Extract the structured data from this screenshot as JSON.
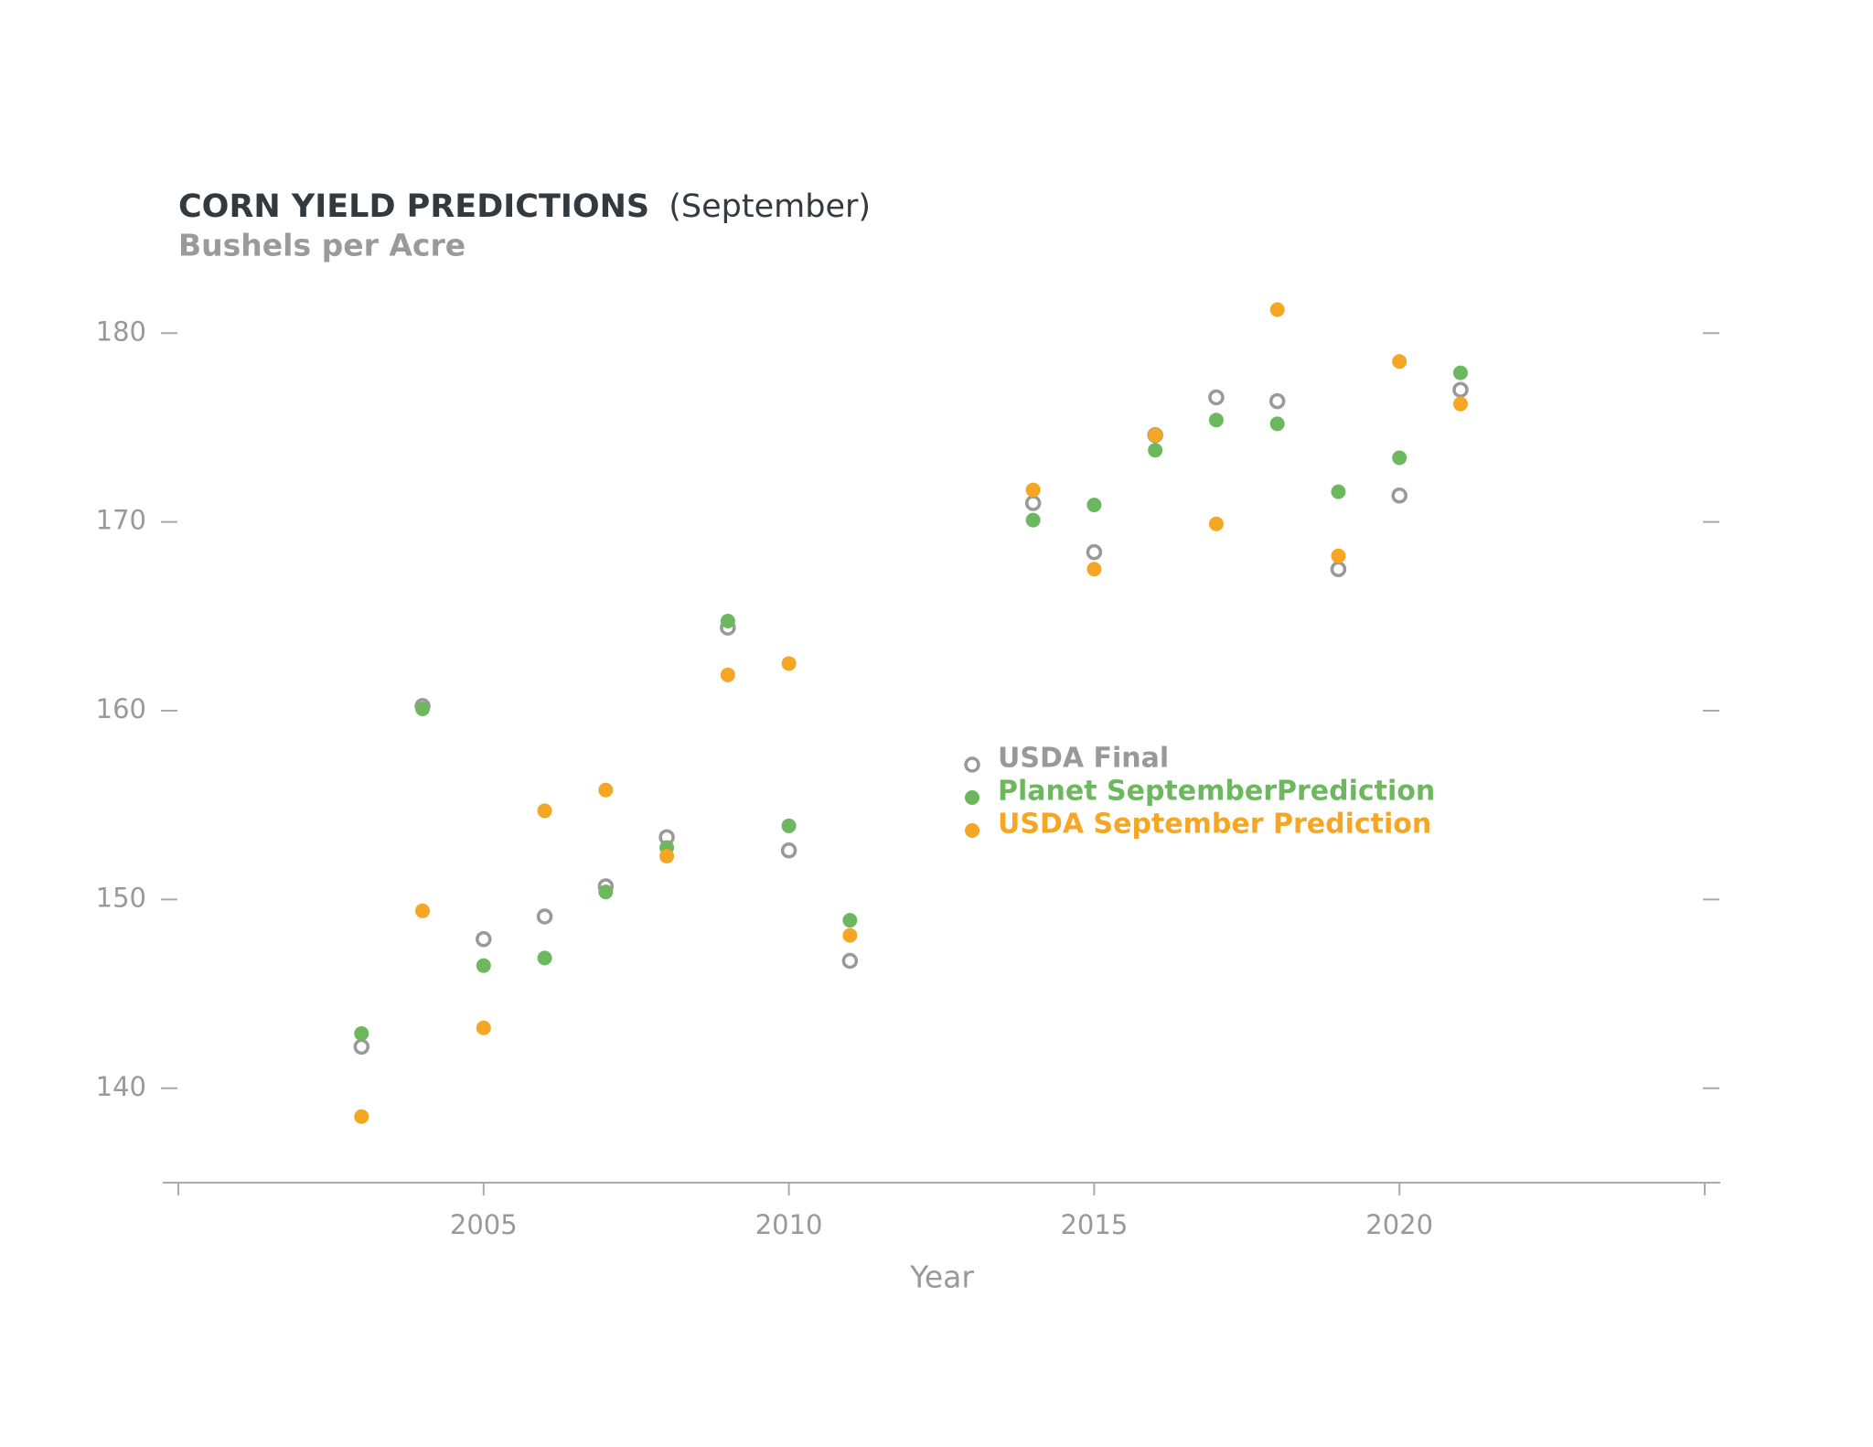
{
  "chart_data": {
    "type": "scatter",
    "title": "CORN YIELD PREDICTIONS",
    "title_suffix": "(September)",
    "subtitle": "Bushels per Acre",
    "x_label": "Year",
    "x": [
      2003,
      2004,
      2005,
      2006,
      2007,
      2008,
      2009,
      2010,
      2011,
      2014,
      2015,
      2016,
      2017,
      2018,
      2019,
      2020,
      2021
    ],
    "series": [
      {
        "name": "USDA Final",
        "color": "#999999",
        "hollow": true,
        "values": [
          142.2,
          160.25,
          147.9,
          149.1,
          150.7,
          153.3,
          164.4,
          152.6,
          146.75,
          171.0,
          168.4,
          174.6,
          176.6,
          176.4,
          167.5,
          171.4,
          177.0
        ]
      },
      {
        "name": "Planet SeptemberPrediction",
        "color": "#6db85f",
        "hollow": false,
        "values": [
          142.9,
          160.1,
          146.5,
          146.9,
          150.4,
          152.75,
          164.75,
          153.9,
          148.9,
          170.1,
          170.9,
          173.8,
          175.4,
          175.2,
          171.6,
          173.4,
          177.9
        ]
      },
      {
        "name": "USDA September Prediction",
        "color": "#f5a623",
        "hollow": false,
        "values": [
          138.5,
          149.4,
          143.2,
          154.7,
          155.8,
          152.3,
          161.9,
          162.5,
          148.1,
          171.7,
          167.5,
          174.6,
          169.9,
          181.25,
          168.2,
          178.5,
          176.25
        ]
      }
    ],
    "xlim": [
      2000,
      2025
    ],
    "xticks": [
      2005,
      2010,
      2015,
      2020
    ],
    "ylim": [
      135,
      182
    ],
    "yticks": [
      140,
      150,
      160,
      170,
      180
    ]
  }
}
